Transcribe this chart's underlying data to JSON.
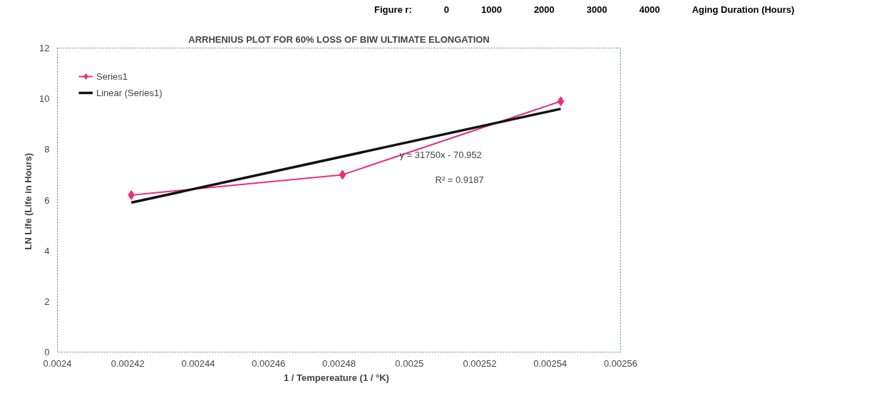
{
  "chart_data": {
    "type": "line",
    "title": "ARRHENIUS PLOT FOR 60% LOSS OF BIW ULTIMATE ELONGATION",
    "xlabel": "1 / Tempereature   (1 / °K)",
    "ylabel": "LN Life  (Life in Hours)",
    "series": [
      {
        "name": "Series1",
        "color": "#e8307a",
        "marker": "diamond",
        "x": [
          0.002421,
          0.002481,
          0.002543
        ],
        "values": [
          6.2,
          7.0,
          9.9
        ]
      },
      {
        "name": "Linear (Series1)",
        "color": "#111111",
        "marker": "none",
        "x": [
          0.002421,
          0.002543
        ],
        "values": [
          5.9,
          9.6
        ]
      }
    ],
    "xlim": [
      0.0024,
      0.00256
    ],
    "xticks": [
      0.0024,
      0.00242,
      0.00244,
      0.00246,
      0.00248,
      0.0025,
      0.00252,
      0.00254,
      0.00256
    ],
    "ylim": [
      0,
      12
    ],
    "yticks": [
      0,
      2,
      4,
      6,
      8,
      10,
      12
    ],
    "grid": false,
    "legend": "top left",
    "annotations": [
      "Figure r:",
      "0",
      "1000",
      "2000",
      "3000",
      "4000",
      "Aging Duration  (Hours)",
      "y = 31750x - 70.952",
      "R² = 0.9187"
    ]
  }
}
